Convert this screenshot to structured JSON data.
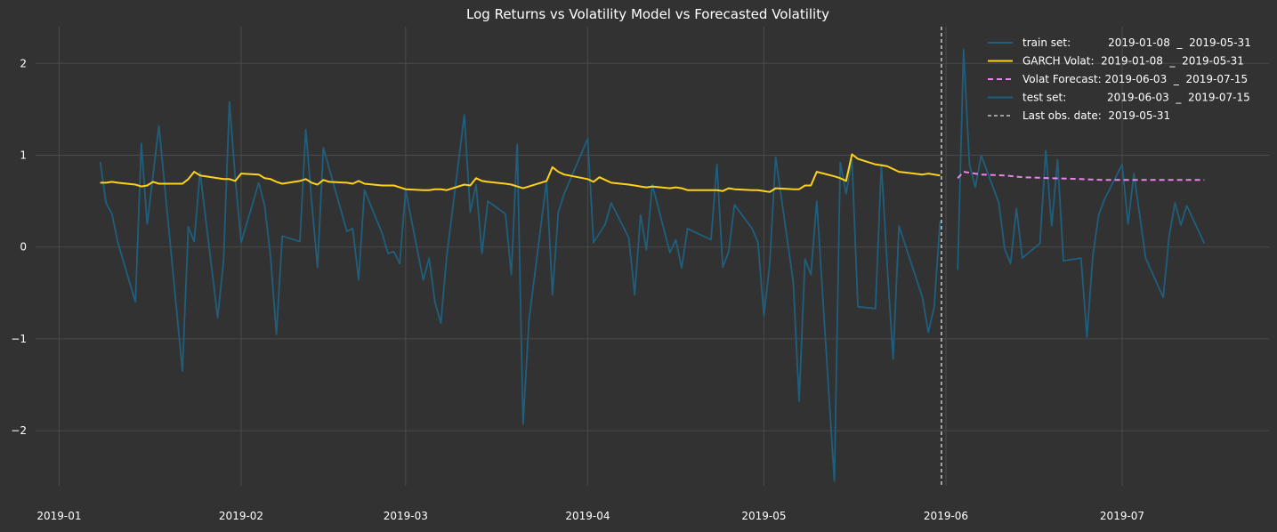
{
  "chart_data": {
    "type": "line",
    "title": "Log Returns vs Volatility Model vs Forecasted Volatility",
    "xlabel": "",
    "ylabel": "",
    "x_type": "date",
    "xlim": [
      "2018-12-28",
      "2019-07-26"
    ],
    "ylim": [
      -2.6,
      2.4
    ],
    "grid": true,
    "legend_position": "top-right",
    "x_tick_labels": [
      "2019-01",
      "2019-02",
      "2019-03",
      "2019-04",
      "2019-05",
      "2019-06",
      "2019-07"
    ],
    "x_tick_dates": [
      "2019-01-01",
      "2019-02-01",
      "2019-03-01",
      "2019-04-01",
      "2019-05-01",
      "2019-06-01",
      "2019-07-01"
    ],
    "y_ticks": [
      -2,
      -1,
      0,
      1,
      2
    ],
    "y_tick_labels": [
      "−2",
      "−1",
      "0",
      "1",
      "2"
    ],
    "series": [
      {
        "name": "train set:           2019-01-08  _  2019-05-31",
        "color": "#1f5f7d",
        "style": "solid",
        "points": [
          [
            "2019-01-08",
            0.93
          ],
          [
            "2019-01-09",
            0.48
          ],
          [
            "2019-01-10",
            0.36
          ],
          [
            "2019-01-11",
            0.05
          ],
          [
            "2019-01-14",
            -0.6
          ],
          [
            "2019-01-15",
            1.13
          ],
          [
            "2019-01-16",
            0.25
          ],
          [
            "2019-01-18",
            1.32
          ],
          [
            "2019-01-22",
            -1.35
          ],
          [
            "2019-01-23",
            0.22
          ],
          [
            "2019-01-24",
            0.06
          ],
          [
            "2019-01-25",
            0.82
          ],
          [
            "2019-01-28",
            -0.77
          ],
          [
            "2019-01-29",
            -0.15
          ],
          [
            "2019-01-30",
            1.58
          ],
          [
            "2019-01-31",
            0.75
          ],
          [
            "2019-02-01",
            0.05
          ],
          [
            "2019-02-04",
            0.7
          ],
          [
            "2019-02-05",
            0.45
          ],
          [
            "2019-02-06",
            -0.1
          ],
          [
            "2019-02-07",
            -0.95
          ],
          [
            "2019-02-08",
            0.12
          ],
          [
            "2019-02-11",
            0.06
          ],
          [
            "2019-02-12",
            1.28
          ],
          [
            "2019-02-13",
            0.5
          ],
          [
            "2019-02-14",
            -0.22
          ],
          [
            "2019-02-15",
            1.08
          ],
          [
            "2019-02-19",
            0.17
          ],
          [
            "2019-02-20",
            0.2
          ],
          [
            "2019-02-21",
            -0.36
          ],
          [
            "2019-02-22",
            0.62
          ],
          [
            "2019-02-25",
            0.15
          ],
          [
            "2019-02-26",
            -0.07
          ],
          [
            "2019-02-27",
            -0.05
          ],
          [
            "2019-02-28",
            -0.18
          ],
          [
            "2019-03-01",
            0.62
          ],
          [
            "2019-03-04",
            -0.36
          ],
          [
            "2019-03-05",
            -0.12
          ],
          [
            "2019-03-06",
            -0.6
          ],
          [
            "2019-03-07",
            -0.83
          ],
          [
            "2019-03-08",
            -0.1
          ],
          [
            "2019-03-11",
            1.44
          ],
          [
            "2019-03-12",
            0.38
          ],
          [
            "2019-03-13",
            0.68
          ],
          [
            "2019-03-14",
            -0.07
          ],
          [
            "2019-03-15",
            0.5
          ],
          [
            "2019-03-18",
            0.36
          ],
          [
            "2019-03-19",
            -0.3
          ],
          [
            "2019-03-20",
            1.12
          ],
          [
            "2019-03-21",
            -1.93
          ],
          [
            "2019-03-22",
            -0.8
          ],
          [
            "2019-03-25",
            0.72
          ],
          [
            "2019-03-26",
            -0.52
          ],
          [
            "2019-03-27",
            0.38
          ],
          [
            "2019-03-28",
            0.58
          ],
          [
            "2019-04-01",
            1.18
          ],
          [
            "2019-04-02",
            0.05
          ],
          [
            "2019-04-03",
            0.15
          ],
          [
            "2019-04-04",
            0.25
          ],
          [
            "2019-04-05",
            0.48
          ],
          [
            "2019-04-08",
            0.1
          ],
          [
            "2019-04-09",
            -0.52
          ],
          [
            "2019-04-10",
            0.35
          ],
          [
            "2019-04-11",
            -0.03
          ],
          [
            "2019-04-12",
            0.68
          ],
          [
            "2019-04-15",
            -0.06
          ],
          [
            "2019-04-16",
            0.08
          ],
          [
            "2019-04-17",
            -0.23
          ],
          [
            "2019-04-18",
            0.2
          ],
          [
            "2019-04-22",
            0.08
          ],
          [
            "2019-04-23",
            0.9
          ],
          [
            "2019-04-24",
            -0.22
          ],
          [
            "2019-04-25",
            -0.05
          ],
          [
            "2019-04-26",
            0.46
          ],
          [
            "2019-04-29",
            0.2
          ],
          [
            "2019-04-30",
            0.05
          ],
          [
            "2019-05-01",
            -0.75
          ],
          [
            "2019-05-02",
            -0.18
          ],
          [
            "2019-05-03",
            0.98
          ],
          [
            "2019-05-06",
            -0.38
          ],
          [
            "2019-05-07",
            -1.68
          ],
          [
            "2019-05-08",
            -0.13
          ],
          [
            "2019-05-09",
            -0.3
          ],
          [
            "2019-05-10",
            0.5
          ],
          [
            "2019-05-13",
            -2.55
          ],
          [
            "2019-05-14",
            0.92
          ],
          [
            "2019-05-15",
            0.58
          ],
          [
            "2019-05-16",
            0.95
          ],
          [
            "2019-05-17",
            -0.65
          ],
          [
            "2019-05-20",
            -0.67
          ],
          [
            "2019-05-21",
            0.9
          ],
          [
            "2019-05-22",
            -0.2
          ],
          [
            "2019-05-23",
            -1.22
          ],
          [
            "2019-05-24",
            0.23
          ],
          [
            "2019-05-28",
            -0.55
          ],
          [
            "2019-05-29",
            -0.93
          ],
          [
            "2019-05-30",
            -0.65
          ],
          [
            "2019-05-31",
            0.28
          ]
        ]
      },
      {
        "name": "GARCH Volat:  2019-01-08  _  2019-05-31",
        "color": "#ffd21a",
        "style": "solid",
        "points": [
          [
            "2019-01-08",
            0.7
          ],
          [
            "2019-01-09",
            0.7
          ],
          [
            "2019-01-10",
            0.71
          ],
          [
            "2019-01-11",
            0.7
          ],
          [
            "2019-01-14",
            0.68
          ],
          [
            "2019-01-15",
            0.66
          ],
          [
            "2019-01-16",
            0.67
          ],
          [
            "2019-01-17",
            0.71
          ],
          [
            "2019-01-18",
            0.69
          ],
          [
            "2019-01-22",
            0.69
          ],
          [
            "2019-01-23",
            0.74
          ],
          [
            "2019-01-24",
            0.82
          ],
          [
            "2019-01-25",
            0.78
          ],
          [
            "2019-01-28",
            0.75
          ],
          [
            "2019-01-29",
            0.74
          ],
          [
            "2019-01-30",
            0.74
          ],
          [
            "2019-01-31",
            0.72
          ],
          [
            "2019-02-01",
            0.8
          ],
          [
            "2019-02-04",
            0.79
          ],
          [
            "2019-02-05",
            0.75
          ],
          [
            "2019-02-06",
            0.74
          ],
          [
            "2019-02-07",
            0.71
          ],
          [
            "2019-02-08",
            0.69
          ],
          [
            "2019-02-11",
            0.72
          ],
          [
            "2019-02-12",
            0.74
          ],
          [
            "2019-02-13",
            0.7
          ],
          [
            "2019-02-14",
            0.68
          ],
          [
            "2019-02-15",
            0.73
          ],
          [
            "2019-02-16",
            0.71
          ],
          [
            "2019-02-19",
            0.7
          ],
          [
            "2019-02-20",
            0.69
          ],
          [
            "2019-02-21",
            0.72
          ],
          [
            "2019-02-22",
            0.69
          ],
          [
            "2019-02-25",
            0.67
          ],
          [
            "2019-02-26",
            0.67
          ],
          [
            "2019-02-27",
            0.67
          ],
          [
            "2019-02-28",
            0.65
          ],
          [
            "2019-03-01",
            0.63
          ],
          [
            "2019-03-04",
            0.62
          ],
          [
            "2019-03-05",
            0.62
          ],
          [
            "2019-03-06",
            0.63
          ],
          [
            "2019-03-07",
            0.63
          ],
          [
            "2019-03-08",
            0.62
          ],
          [
            "2019-03-11",
            0.68
          ],
          [
            "2019-03-12",
            0.67
          ],
          [
            "2019-03-13",
            0.75
          ],
          [
            "2019-03-14",
            0.72
          ],
          [
            "2019-03-15",
            0.71
          ],
          [
            "2019-03-18",
            0.69
          ],
          [
            "2019-03-19",
            0.68
          ],
          [
            "2019-03-20",
            0.66
          ],
          [
            "2019-03-21",
            0.64
          ],
          [
            "2019-03-22",
            0.66
          ],
          [
            "2019-03-25",
            0.72
          ],
          [
            "2019-03-26",
            0.87
          ],
          [
            "2019-03-27",
            0.82
          ],
          [
            "2019-03-28",
            0.79
          ],
          [
            "2019-04-01",
            0.74
          ],
          [
            "2019-04-02",
            0.71
          ],
          [
            "2019-04-03",
            0.76
          ],
          [
            "2019-04-04",
            0.73
          ],
          [
            "2019-04-05",
            0.7
          ],
          [
            "2019-04-08",
            0.68
          ],
          [
            "2019-04-09",
            0.67
          ],
          [
            "2019-04-10",
            0.66
          ],
          [
            "2019-04-11",
            0.65
          ],
          [
            "2019-04-12",
            0.66
          ],
          [
            "2019-04-15",
            0.64
          ],
          [
            "2019-04-16",
            0.65
          ],
          [
            "2019-04-17",
            0.64
          ],
          [
            "2019-04-18",
            0.62
          ],
          [
            "2019-04-22",
            0.62
          ],
          [
            "2019-04-23",
            0.62
          ],
          [
            "2019-04-24",
            0.61
          ],
          [
            "2019-04-25",
            0.64
          ],
          [
            "2019-04-26",
            0.63
          ],
          [
            "2019-04-29",
            0.62
          ],
          [
            "2019-04-30",
            0.62
          ],
          [
            "2019-05-01",
            0.61
          ],
          [
            "2019-05-02",
            0.6
          ],
          [
            "2019-05-03",
            0.64
          ],
          [
            "2019-05-06",
            0.63
          ],
          [
            "2019-05-07",
            0.63
          ],
          [
            "2019-05-08",
            0.67
          ],
          [
            "2019-05-09",
            0.67
          ],
          [
            "2019-05-10",
            0.82
          ],
          [
            "2019-05-13",
            0.77
          ],
          [
            "2019-05-14",
            0.75
          ],
          [
            "2019-05-15",
            0.72
          ],
          [
            "2019-05-16",
            1.01
          ],
          [
            "2019-05-17",
            0.96
          ],
          [
            "2019-05-20",
            0.9
          ],
          [
            "2019-05-21",
            0.89
          ],
          [
            "2019-05-22",
            0.88
          ],
          [
            "2019-05-23",
            0.85
          ],
          [
            "2019-05-24",
            0.82
          ],
          [
            "2019-05-28",
            0.79
          ],
          [
            "2019-05-29",
            0.8
          ],
          [
            "2019-05-30",
            0.79
          ],
          [
            "2019-05-31",
            0.78
          ]
        ]
      },
      {
        "name": "Volat Forecast: 2019-06-03  _  2019-07-15",
        "color": "#ee82ee",
        "style": "dashed",
        "points": [
          [
            "2019-06-03",
            0.75
          ],
          [
            "2019-06-04",
            0.82
          ],
          [
            "2019-06-07",
            0.79
          ],
          [
            "2019-06-11",
            0.78
          ],
          [
            "2019-06-14",
            0.76
          ],
          [
            "2019-06-19",
            0.75
          ],
          [
            "2019-06-24",
            0.74
          ],
          [
            "2019-06-28",
            0.73
          ],
          [
            "2019-07-03",
            0.73
          ],
          [
            "2019-07-09",
            0.73
          ],
          [
            "2019-07-15",
            0.73
          ]
        ]
      },
      {
        "name": "test set:            2019-06-03  _  2019-07-15",
        "color": "#1f5f7d",
        "style": "solid",
        "points": [
          [
            "2019-06-03",
            -0.25
          ],
          [
            "2019-06-04",
            2.15
          ],
          [
            "2019-06-05",
            0.9
          ],
          [
            "2019-06-06",
            0.65
          ],
          [
            "2019-06-07",
            1.0
          ],
          [
            "2019-06-10",
            0.48
          ],
          [
            "2019-06-11",
            -0.02
          ],
          [
            "2019-06-12",
            -0.18
          ],
          [
            "2019-06-13",
            0.42
          ],
          [
            "2019-06-14",
            -0.12
          ],
          [
            "2019-06-17",
            0.04
          ],
          [
            "2019-06-18",
            1.05
          ],
          [
            "2019-06-19",
            0.23
          ],
          [
            "2019-06-20",
            0.95
          ],
          [
            "2019-06-21",
            -0.15
          ],
          [
            "2019-06-24",
            -0.12
          ],
          [
            "2019-06-25",
            -0.98
          ],
          [
            "2019-06-26",
            -0.1
          ],
          [
            "2019-06-27",
            0.35
          ],
          [
            "2019-06-28",
            0.52
          ],
          [
            "2019-07-01",
            0.9
          ],
          [
            "2019-07-02",
            0.25
          ],
          [
            "2019-07-03",
            0.8
          ],
          [
            "2019-07-05",
            -0.12
          ],
          [
            "2019-07-08",
            -0.55
          ],
          [
            "2019-07-09",
            0.12
          ],
          [
            "2019-07-10",
            0.48
          ],
          [
            "2019-07-11",
            0.24
          ],
          [
            "2019-07-12",
            0.45
          ],
          [
            "2019-07-15",
            0.04
          ]
        ]
      }
    ],
    "vlines": [
      {
        "name": "Last obs. date:  2019-05-31",
        "x": "2019-05-31",
        "color": "#e0e0e0",
        "style": "dashed"
      }
    ]
  }
}
